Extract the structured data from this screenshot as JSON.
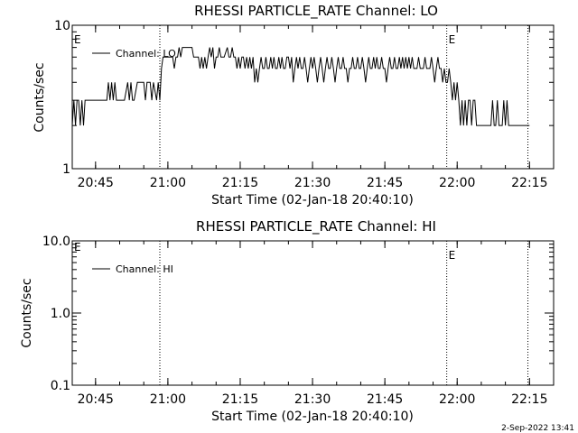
{
  "footer": {
    "timestamp": "2-Sep-2022 13:41"
  },
  "chart_data": [
    {
      "type": "line",
      "title": "RHESSI PARTICLE_RATE Channel: LO",
      "xlabel": "Start Time (02-Jan-18 20:40:10)",
      "ylabel": "Counts/sec",
      "yscale": "log",
      "ylim": [
        1,
        10
      ],
      "xlim": [
        "20:40:10",
        "22:20:00"
      ],
      "x_ticks": [
        "20:45",
        "21:00",
        "21:15",
        "21:30",
        "21:45",
        "22:00",
        "22:15"
      ],
      "y_ticks": [
        "1",
        "10"
      ],
      "grid": false,
      "legend": {
        "position": "top-left",
        "entries": [
          "Channel: LO"
        ]
      },
      "markers": [
        {
          "time": "20:58:20",
          "label": ""
        },
        {
          "time": "21:57:50",
          "label": "E"
        },
        {
          "time": "22:14:40",
          "label": ""
        }
      ],
      "start_marker_label": "E",
      "color": "#000000",
      "series": [
        {
          "name": "Channel: LO",
          "points": [
            [
              "20:40:10",
              2
            ],
            [
              "20:40:30",
              3
            ],
            [
              "20:40:50",
              2
            ],
            [
              "20:41:10",
              3
            ],
            [
              "20:41:30",
              3
            ],
            [
              "20:41:50",
              2
            ],
            [
              "20:42:10",
              3
            ],
            [
              "20:42:30",
              2
            ],
            [
              "20:42:50",
              3
            ],
            [
              "20:43:30",
              3
            ],
            [
              "20:44:30",
              3
            ],
            [
              "20:45:30",
              3
            ],
            [
              "20:46:30",
              3
            ],
            [
              "20:47:20",
              3
            ],
            [
              "20:47:40",
              4
            ],
            [
              "20:48:00",
              3
            ],
            [
              "20:48:20",
              4
            ],
            [
              "20:48:40",
              3
            ],
            [
              "20:49:00",
              4
            ],
            [
              "20:49:20",
              3
            ],
            [
              "20:50:00",
              3
            ],
            [
              "20:51:00",
              3
            ],
            [
              "20:51:40",
              4
            ],
            [
              "20:52:00",
              3
            ],
            [
              "20:52:20",
              4
            ],
            [
              "20:52:40",
              3
            ],
            [
              "20:53:00",
              3
            ],
            [
              "20:53:40",
              4
            ],
            [
              "20:54:20",
              4
            ],
            [
              "20:55:00",
              4
            ],
            [
              "20:55:20",
              3
            ],
            [
              "20:55:40",
              4
            ],
            [
              "20:56:20",
              4
            ],
            [
              "20:56:40",
              3
            ],
            [
              "20:57:00",
              4
            ],
            [
              "20:57:40",
              3
            ],
            [
              "20:58:00",
              4
            ],
            [
              "20:58:20",
              3
            ],
            [
              "20:58:40",
              5
            ],
            [
              "20:59:00",
              6
            ],
            [
              "20:59:40",
              6
            ],
            [
              "21:00:30",
              6
            ],
            [
              "21:01:00",
              6
            ],
            [
              "21:01:20",
              5
            ],
            [
              "21:01:40",
              6
            ],
            [
              "21:02:00",
              6
            ],
            [
              "21:02:20",
              7
            ],
            [
              "21:02:40",
              6
            ],
            [
              "21:03:00",
              7
            ],
            [
              "21:03:40",
              7
            ],
            [
              "21:04:20",
              7
            ],
            [
              "21:05:00",
              7
            ],
            [
              "21:05:20",
              6
            ],
            [
              "21:05:40",
              6
            ],
            [
              "21:06:00",
              6
            ],
            [
              "21:06:20",
              6
            ],
            [
              "21:06:40",
              5
            ],
            [
              "21:07:00",
              6
            ],
            [
              "21:07:20",
              5
            ],
            [
              "21:07:40",
              6
            ],
            [
              "21:08:00",
              5
            ],
            [
              "21:08:20",
              6
            ],
            [
              "21:08:40",
              7
            ],
            [
              "21:09:00",
              6
            ],
            [
              "21:09:20",
              7
            ],
            [
              "21:09:40",
              5
            ],
            [
              "21:10:00",
              6
            ],
            [
              "21:10:20",
              6
            ],
            [
              "21:10:40",
              7
            ],
            [
              "21:11:00",
              6
            ],
            [
              "21:11:40",
              6
            ],
            [
              "21:12:20",
              7
            ],
            [
              "21:12:40",
              6
            ],
            [
              "21:13:00",
              6
            ],
            [
              "21:13:20",
              7
            ],
            [
              "21:13:40",
              6
            ],
            [
              "21:14:00",
              6
            ],
            [
              "21:14:20",
              5
            ],
            [
              "21:14:40",
              6
            ],
            [
              "21:15:00",
              5
            ],
            [
              "21:15:20",
              6
            ],
            [
              "21:15:40",
              6
            ],
            [
              "21:16:00",
              5
            ],
            [
              "21:16:20",
              6
            ],
            [
              "21:16:40",
              5
            ],
            [
              "21:17:00",
              6
            ],
            [
              "21:17:20",
              5
            ],
            [
              "21:17:40",
              6
            ],
            [
              "21:18:00",
              4
            ],
            [
              "21:18:20",
              5
            ],
            [
              "21:18:40",
              4
            ],
            [
              "21:19:00",
              5
            ],
            [
              "21:19:20",
              6
            ],
            [
              "21:19:40",
              5
            ],
            [
              "21:20:00",
              5
            ],
            [
              "21:20:20",
              6
            ],
            [
              "21:20:40",
              5
            ],
            [
              "21:21:00",
              5
            ],
            [
              "21:21:20",
              6
            ],
            [
              "21:21:40",
              5
            ],
            [
              "21:22:00",
              6
            ],
            [
              "21:22:20",
              5
            ],
            [
              "21:22:40",
              5
            ],
            [
              "21:23:00",
              6
            ],
            [
              "21:23:20",
              5
            ],
            [
              "21:23:40",
              6
            ],
            [
              "21:24:00",
              5
            ],
            [
              "21:24:20",
              5
            ],
            [
              "21:24:40",
              6
            ],
            [
              "21:25:00",
              6
            ],
            [
              "21:25:20",
              5
            ],
            [
              "21:25:40",
              6
            ],
            [
              "21:26:00",
              4
            ],
            [
              "21:26:20",
              5
            ],
            [
              "21:26:40",
              6
            ],
            [
              "21:27:00",
              5
            ],
            [
              "21:27:20",
              6
            ],
            [
              "21:27:40",
              5
            ],
            [
              "21:28:00",
              5
            ],
            [
              "21:28:20",
              6
            ],
            [
              "21:28:40",
              5
            ],
            [
              "21:29:00",
              4
            ],
            [
              "21:29:20",
              5
            ],
            [
              "21:29:40",
              6
            ],
            [
              "21:30:00",
              5
            ],
            [
              "21:30:20",
              6
            ],
            [
              "21:30:40",
              5
            ],
            [
              "21:31:00",
              4
            ],
            [
              "21:31:20",
              5
            ],
            [
              "21:31:40",
              6
            ],
            [
              "21:32:00",
              5
            ],
            [
              "21:32:20",
              4
            ],
            [
              "21:32:40",
              5
            ],
            [
              "21:33:00",
              6
            ],
            [
              "21:33:20",
              5
            ],
            [
              "21:33:40",
              5
            ],
            [
              "21:34:00",
              6
            ],
            [
              "21:34:20",
              5
            ],
            [
              "21:34:40",
              4
            ],
            [
              "21:35:00",
              5
            ],
            [
              "21:35:20",
              6
            ],
            [
              "21:35:40",
              5
            ],
            [
              "21:36:00",
              5
            ],
            [
              "21:36:20",
              6
            ],
            [
              "21:36:40",
              5
            ],
            [
              "21:37:00",
              5
            ],
            [
              "21:37:20",
              4
            ],
            [
              "21:37:40",
              5
            ],
            [
              "21:38:00",
              5
            ],
            [
              "21:38:20",
              6
            ],
            [
              "21:38:40",
              5
            ],
            [
              "21:39:00",
              5
            ],
            [
              "21:39:20",
              6
            ],
            [
              "21:39:40",
              5
            ],
            [
              "21:40:00",
              5
            ],
            [
              "21:40:20",
              6
            ],
            [
              "21:40:40",
              5
            ],
            [
              "21:41:00",
              4
            ],
            [
              "21:41:20",
              5
            ],
            [
              "21:41:40",
              6
            ],
            [
              "21:42:00",
              5
            ],
            [
              "21:42:20",
              5
            ],
            [
              "21:42:40",
              6
            ],
            [
              "21:43:00",
              5
            ],
            [
              "21:43:20",
              6
            ],
            [
              "21:43:40",
              5
            ],
            [
              "21:44:00",
              5
            ],
            [
              "21:44:20",
              6
            ],
            [
              "21:44:40",
              5
            ],
            [
              "21:45:00",
              5
            ],
            [
              "21:45:20",
              4
            ],
            [
              "21:45:40",
              5
            ],
            [
              "21:46:00",
              6
            ],
            [
              "21:46:20",
              5
            ],
            [
              "21:46:40",
              5
            ],
            [
              "21:47:00",
              6
            ],
            [
              "21:47:20",
              5
            ],
            [
              "21:47:40",
              5
            ],
            [
              "21:48:00",
              6
            ],
            [
              "21:48:20",
              5
            ],
            [
              "21:48:40",
              6
            ],
            [
              "21:49:00",
              5
            ],
            [
              "21:49:20",
              6
            ],
            [
              "21:49:40",
              5
            ],
            [
              "21:50:00",
              6
            ],
            [
              "21:50:20",
              5
            ],
            [
              "21:50:40",
              6
            ],
            [
              "21:51:00",
              5
            ],
            [
              "21:51:40",
              5
            ],
            [
              "21:52:00",
              6
            ],
            [
              "21:52:20",
              5
            ],
            [
              "21:53:00",
              5
            ],
            [
              "21:53:20",
              6
            ],
            [
              "21:53:40",
              5
            ],
            [
              "21:54:20",
              5
            ],
            [
              "21:54:40",
              6
            ],
            [
              "21:55:00",
              5
            ],
            [
              "21:55:20",
              4
            ],
            [
              "21:55:40",
              5
            ],
            [
              "21:56:00",
              6
            ],
            [
              "21:56:20",
              5
            ],
            [
              "21:56:40",
              5
            ],
            [
              "21:57:00",
              4
            ],
            [
              "21:57:20",
              5
            ],
            [
              "21:57:40",
              4
            ],
            [
              "21:58:00",
              4
            ],
            [
              "21:58:20",
              5
            ],
            [
              "21:58:40",
              4
            ],
            [
              "21:59:00",
              3
            ],
            [
              "21:59:20",
              4
            ],
            [
              "21:59:40",
              3
            ],
            [
              "22:00:00",
              4
            ],
            [
              "22:00:20",
              3
            ],
            [
              "22:00:40",
              2
            ],
            [
              "22:01:00",
              3
            ],
            [
              "22:01:20",
              2
            ],
            [
              "22:01:40",
              3
            ],
            [
              "22:02:00",
              2
            ],
            [
              "22:02:20",
              3
            ],
            [
              "22:02:40",
              3
            ],
            [
              "22:03:00",
              2
            ],
            [
              "22:03:20",
              3
            ],
            [
              "22:03:40",
              3
            ],
            [
              "22:04:00",
              2
            ],
            [
              "22:05:00",
              2
            ],
            [
              "22:06:00",
              2
            ],
            [
              "22:07:00",
              2
            ],
            [
              "22:07:20",
              3
            ],
            [
              "22:07:40",
              2
            ],
            [
              "22:08:00",
              2
            ],
            [
              "22:08:20",
              3
            ],
            [
              "22:08:40",
              2
            ],
            [
              "22:09:20",
              2
            ],
            [
              "22:09:40",
              3
            ],
            [
              "22:10:00",
              2
            ],
            [
              "22:10:20",
              3
            ],
            [
              "22:10:40",
              2
            ],
            [
              "22:11:20",
              2
            ],
            [
              "22:12:20",
              2
            ],
            [
              "22:13:00",
              2
            ],
            [
              "22:14:00",
              2
            ],
            [
              "22:15:00",
              2
            ]
          ]
        }
      ]
    },
    {
      "type": "line",
      "title": "RHESSI PARTICLE_RATE Channel: HI",
      "xlabel": "Start Time (02-Jan-18 20:40:10)",
      "ylabel": "Counts/sec",
      "yscale": "log",
      "ylim": [
        0.1,
        10
      ],
      "xlim": [
        "20:40:10",
        "22:20:00"
      ],
      "x_ticks": [
        "20:45",
        "21:00",
        "21:15",
        "21:30",
        "21:45",
        "22:00",
        "22:15"
      ],
      "y_ticks": [
        "0.1",
        "1.0",
        "10.0"
      ],
      "grid": false,
      "legend": {
        "position": "top-left",
        "entries": [
          "Channel: HI"
        ]
      },
      "markers": [
        {
          "time": "20:58:20",
          "label": ""
        },
        {
          "time": "21:57:50",
          "label": "E"
        },
        {
          "time": "22:14:40",
          "label": ""
        }
      ],
      "start_marker_label": "E",
      "color": "#000000",
      "series": [
        {
          "name": "Channel: HI",
          "points": []
        }
      ]
    }
  ]
}
